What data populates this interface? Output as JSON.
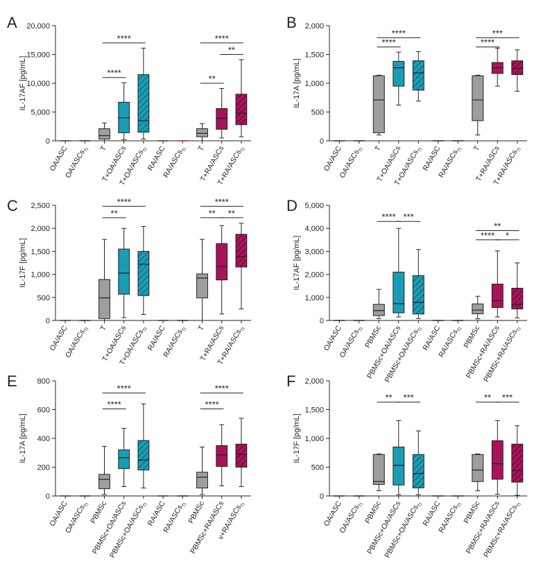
{
  "colors": {
    "gray": "#9e9e9e",
    "teal": "#1a9db4",
    "magenta": "#a8135a",
    "axis": "#222222"
  },
  "chart_data": [
    {
      "panel": "A",
      "type": "box",
      "ylabel": "IL-17AF [pg/mL]",
      "ylim": [
        0,
        20000
      ],
      "yticks": [
        0,
        5000,
        10000,
        15000,
        20000
      ],
      "ytick_labels": [
        "0",
        "5,000",
        "10,000",
        "15,000",
        "20,000"
      ],
      "categories": [
        "OA/ASC",
        "OA/ASCs_TI",
        "T",
        "T+OA/ASCs",
        "T+OA/ASCs_TI",
        "RA/ASC",
        "RA/ASCs_TI",
        "T",
        "T+RA/ASCs",
        "T+RA/ASCs_TI"
      ],
      "boxes": [
        {
          "style": "flat",
          "color": "gray",
          "min": 0,
          "q1": 0,
          "median": 0,
          "q3": 0,
          "max": 0
        },
        {
          "style": "flat",
          "color": "gray",
          "min": 0,
          "q1": 0,
          "median": 0,
          "q3": 0,
          "max": 0
        },
        {
          "style": "solid",
          "color": "gray",
          "min": 0,
          "q1": 300,
          "median": 900,
          "q3": 2100,
          "max": 3100
        },
        {
          "style": "solid",
          "color": "teal",
          "min": 200,
          "q1": 1400,
          "median": 4000,
          "q3": 6700,
          "max": 10100
        },
        {
          "style": "hatched",
          "color": "teal",
          "min": 300,
          "q1": 1500,
          "median": 3500,
          "q3": 11500,
          "max": 16100
        },
        {
          "style": "flat",
          "color": "gray",
          "min": 0,
          "q1": 0,
          "median": 0,
          "q3": 0,
          "max": 0
        },
        {
          "style": "flat",
          "color": "magenta",
          "min": 0,
          "q1": 0,
          "median": 0,
          "q3": 0,
          "max": 0
        },
        {
          "style": "solid",
          "color": "gray",
          "min": 0,
          "q1": 700,
          "median": 1300,
          "q3": 2100,
          "max": 3000
        },
        {
          "style": "solid",
          "color": "magenta",
          "min": 500,
          "q1": 2000,
          "median": 3900,
          "q3": 5600,
          "max": 9100
        },
        {
          "style": "hatched",
          "color": "magenta",
          "min": 700,
          "q1": 2800,
          "median": 4800,
          "q3": 8100,
          "max": 14100
        }
      ],
      "brackets": [
        {
          "from": 2,
          "to": 4,
          "y": 17000,
          "label": "****"
        },
        {
          "from": 2,
          "to": 3,
          "y": 11000,
          "label": "****"
        },
        {
          "from": 7,
          "to": 9,
          "y": 17000,
          "label": "****"
        },
        {
          "from": 7,
          "to": 8,
          "y": 10000,
          "label": "**"
        },
        {
          "from": 8,
          "to": 9,
          "y": 15000,
          "label": "**"
        }
      ]
    },
    {
      "panel": "B",
      "type": "box",
      "ylabel": "IL-17A [pg/mL]",
      "ylim": [
        0,
        2000
      ],
      "yticks": [
        0,
        500,
        1000,
        1500,
        2000
      ],
      "ytick_labels": [
        "0",
        "500",
        "1,000",
        "1,500",
        "2,000"
      ],
      "categories": [
        "OA/ASC",
        "OA/ASCs_TI",
        "T",
        "T+OA/ASCs",
        "T+OA/ASCs_TI",
        "RA/ASC",
        "RA/ASCs_TI",
        "T",
        "T+RA/ASCs",
        "T+RA/ASCs_TI"
      ],
      "boxes": [
        {
          "style": "flat",
          "color": "gray",
          "min": 0,
          "q1": 0,
          "median": 0,
          "q3": 0,
          "max": 0
        },
        {
          "style": "flat",
          "color": "gray",
          "min": 0,
          "q1": 0,
          "median": 0,
          "q3": 0,
          "max": 0
        },
        {
          "style": "solid",
          "color": "gray",
          "min": 100,
          "q1": 140,
          "median": 710,
          "q3": 1130,
          "max": 1140
        },
        {
          "style": "solid",
          "color": "teal",
          "min": 620,
          "q1": 950,
          "median": 1270,
          "q3": 1380,
          "max": 1540
        },
        {
          "style": "hatched",
          "color": "teal",
          "min": 690,
          "q1": 880,
          "median": 1180,
          "q3": 1390,
          "max": 1550
        },
        {
          "style": "flat",
          "color": "gray",
          "min": 0,
          "q1": 0,
          "median": 0,
          "q3": 0,
          "max": 0
        },
        {
          "style": "flat",
          "color": "gray",
          "min": 0,
          "q1": 0,
          "median": 0,
          "q3": 0,
          "max": 0
        },
        {
          "style": "solid",
          "color": "gray",
          "min": 100,
          "q1": 350,
          "median": 710,
          "q3": 1130,
          "max": 1140
        },
        {
          "style": "solid",
          "color": "magenta",
          "min": 950,
          "q1": 1170,
          "median": 1270,
          "q3": 1360,
          "max": 1610
        },
        {
          "style": "hatched",
          "color": "magenta",
          "min": 860,
          "q1": 1150,
          "median": 1260,
          "q3": 1390,
          "max": 1580
        }
      ],
      "brackets": [
        {
          "from": 2,
          "to": 4,
          "y": 1790,
          "label": "****"
        },
        {
          "from": 2,
          "to": 3,
          "y": 1630,
          "label": "****"
        },
        {
          "from": 7,
          "to": 9,
          "y": 1790,
          "label": "***"
        },
        {
          "from": 7,
          "to": 8,
          "y": 1630,
          "label": "****"
        }
      ]
    },
    {
      "panel": "C",
      "type": "box",
      "ylabel": "IL-17F [pg/mL]",
      "ylim": [
        0,
        2500
      ],
      "yticks": [
        0,
        500,
        1000,
        1500,
        2000,
        2500
      ],
      "ytick_labels": [
        "0",
        "500",
        "1,000",
        "1,500",
        "2,000",
        "2,500"
      ],
      "categories": [
        "OA/ASC",
        "OA/ASCs_TI",
        "T",
        "T+OA/ASCs",
        "T+OA/ASCs_TI",
        "RA/ASC",
        "RA/ASCs_TI",
        "T",
        "T+RA/ASCs",
        "T+RA/ASCs_TI"
      ],
      "boxes": [
        {
          "style": "flat",
          "color": "gray",
          "min": 0,
          "q1": 0,
          "median": 0,
          "q3": 0,
          "max": 0
        },
        {
          "style": "flat",
          "color": "gray",
          "min": 0,
          "q1": 0,
          "median": 0,
          "q3": 0,
          "max": 0
        },
        {
          "style": "solid",
          "color": "gray",
          "min": 0,
          "q1": 40,
          "median": 490,
          "q3": 890,
          "max": 1760
        },
        {
          "style": "solid",
          "color": "teal",
          "min": 60,
          "q1": 570,
          "median": 1030,
          "q3": 1550,
          "max": 2000
        },
        {
          "style": "hatched",
          "color": "teal",
          "min": 130,
          "q1": 540,
          "median": 1220,
          "q3": 1500,
          "max": 2040
        },
        {
          "style": "flat",
          "color": "gray",
          "min": 0,
          "q1": 0,
          "median": 0,
          "q3": 0,
          "max": 0
        },
        {
          "style": "flat",
          "color": "gray",
          "min": 0,
          "q1": 0,
          "median": 0,
          "q3": 0,
          "max": 0
        },
        {
          "style": "solid",
          "color": "gray",
          "min": 0,
          "q1": 490,
          "median": 920,
          "q3": 1010,
          "max": 1760
        },
        {
          "style": "solid",
          "color": "magenta",
          "min": 140,
          "q1": 880,
          "median": 1170,
          "q3": 1670,
          "max": 2060
        },
        {
          "style": "hatched",
          "color": "magenta",
          "min": 250,
          "q1": 1160,
          "median": 1390,
          "q3": 1870,
          "max": 2110
        }
      ],
      "brackets": [
        {
          "from": 2,
          "to": 4,
          "y": 2480,
          "label": "****"
        },
        {
          "from": 2,
          "to": 3,
          "y": 2230,
          "label": "**"
        },
        {
          "from": 7,
          "to": 9,
          "y": 2480,
          "label": "****"
        },
        {
          "from": 7,
          "to": 8,
          "y": 2230,
          "label": "**"
        },
        {
          "from": 8,
          "to": 9,
          "y": 2230,
          "label": "**"
        }
      ]
    },
    {
      "panel": "D",
      "type": "box",
      "ylabel": "IL-17AF [pg/mL]",
      "ylim": [
        0,
        5000
      ],
      "yticks": [
        0,
        1000,
        2000,
        3000,
        4000,
        5000
      ],
      "ytick_labels": [
        "0",
        "1,000",
        "2,000",
        "3,000",
        "4,000",
        "5,000"
      ],
      "categories": [
        "OA/ASC",
        "OA/ASCs_TI",
        "PBMSc",
        "PBMSc+OA/ASCs",
        "PBMSc+OA/ASCs_TI",
        "RA/ASC",
        "RA/ASCs_TI",
        "PBMSc",
        "PBMSc+RA/ASCs",
        "PBMSc+RA/ASCs_TI"
      ],
      "boxes": [
        {
          "style": "flat",
          "color": "gray",
          "min": 0,
          "q1": 0,
          "median": 0,
          "q3": 0,
          "max": 0
        },
        {
          "style": "flat",
          "color": "gray",
          "min": 0,
          "q1": 0,
          "median": 0,
          "q3": 0,
          "max": 0
        },
        {
          "style": "solid",
          "color": "gray",
          "min": 80,
          "q1": 210,
          "median": 430,
          "q3": 700,
          "max": 1350
        },
        {
          "style": "solid",
          "color": "teal",
          "min": 150,
          "q1": 330,
          "median": 730,
          "q3": 2100,
          "max": 4000
        },
        {
          "style": "hatched",
          "color": "teal",
          "min": 80,
          "q1": 280,
          "median": 790,
          "q3": 1950,
          "max": 3080
        },
        {
          "style": "flat",
          "color": "gray",
          "min": 0,
          "q1": 0,
          "median": 0,
          "q3": 0,
          "max": 0
        },
        {
          "style": "flat",
          "color": "gray",
          "min": 0,
          "q1": 0,
          "median": 0,
          "q3": 0,
          "max": 0
        },
        {
          "style": "solid",
          "color": "gray",
          "min": 70,
          "q1": 290,
          "median": 450,
          "q3": 720,
          "max": 1050
        },
        {
          "style": "solid",
          "color": "magenta",
          "min": 150,
          "q1": 560,
          "median": 860,
          "q3": 1580,
          "max": 3020
        },
        {
          "style": "hatched",
          "color": "magenta",
          "min": 110,
          "q1": 500,
          "median": 690,
          "q3": 1400,
          "max": 2500
        }
      ],
      "brackets": [
        {
          "from": 2,
          "to": 3,
          "y": 4300,
          "label": "****"
        },
        {
          "from": 3,
          "to": 4,
          "y": 4300,
          "label": "***"
        },
        {
          "from": 7,
          "to": 9,
          "y": 3900,
          "label": "**"
        },
        {
          "from": 7,
          "to": 8,
          "y": 3500,
          "label": "****"
        },
        {
          "from": 8,
          "to": 9,
          "y": 3500,
          "label": "*"
        }
      ]
    },
    {
      "panel": "E",
      "type": "box",
      "ylabel": "IL-17A [pg/mL]",
      "ylim": [
        0,
        800
      ],
      "yticks": [
        0,
        200,
        400,
        600,
        800
      ],
      "ytick_labels": [
        "0",
        "200",
        "400",
        "600",
        "800"
      ],
      "categories": [
        "OA/ASC",
        "OA/ASCs_TI",
        "PBMSc",
        "PBMSc+OA/ASCs",
        "PBMSc+OA/ASCs_TI",
        "RA/ASC",
        "RA/ASCs_TI",
        "PBMSc",
        "PBMSc+RA/ASCs",
        "v+RA/ASCs_TI"
      ],
      "boxes": [
        {
          "style": "flat",
          "color": "gray",
          "min": 0,
          "q1": 0,
          "median": 0,
          "q3": 0,
          "max": 0
        },
        {
          "style": "flat",
          "color": "gray",
          "min": 0,
          "q1": 0,
          "median": 0,
          "q3": 0,
          "max": 0
        },
        {
          "style": "solid",
          "color": "gray",
          "min": 10,
          "q1": 50,
          "median": 115,
          "q3": 150,
          "max": 345
        },
        {
          "style": "solid",
          "color": "teal",
          "min": 65,
          "q1": 190,
          "median": 265,
          "q3": 320,
          "max": 470
        },
        {
          "style": "hatched",
          "color": "teal",
          "min": 55,
          "q1": 180,
          "median": 250,
          "q3": 385,
          "max": 640
        },
        {
          "style": "flat",
          "color": "gray",
          "min": 0,
          "q1": 0,
          "median": 0,
          "q3": 0,
          "max": 0
        },
        {
          "style": "flat",
          "color": "gray",
          "min": 0,
          "q1": 0,
          "median": 0,
          "q3": 0,
          "max": 0
        },
        {
          "style": "solid",
          "color": "gray",
          "min": 10,
          "q1": 55,
          "median": 130,
          "q3": 165,
          "max": 340
        },
        {
          "style": "solid",
          "color": "magenta",
          "min": 70,
          "q1": 205,
          "median": 285,
          "q3": 350,
          "max": 495
        },
        {
          "style": "hatched",
          "color": "magenta",
          "min": 65,
          "q1": 200,
          "median": 290,
          "q3": 360,
          "max": 540
        }
      ],
      "brackets": [
        {
          "from": 2,
          "to": 4,
          "y": 715,
          "label": "****"
        },
        {
          "from": 2,
          "to": 3,
          "y": 605,
          "label": "****"
        },
        {
          "from": 7,
          "to": 9,
          "y": 715,
          "label": "****"
        },
        {
          "from": 7,
          "to": 8,
          "y": 605,
          "label": "****"
        }
      ]
    },
    {
      "panel": "F",
      "type": "box",
      "ylabel": "IL-17F [pg/mL]",
      "ylim": [
        0,
        2000
      ],
      "yticks": [
        0,
        500,
        1000,
        1500,
        2000
      ],
      "ytick_labels": [
        "0",
        "500",
        "1,000",
        "1,500",
        "2,000"
      ],
      "categories": [
        "OA/ASC",
        "OA/ASCs_TI",
        "PBMSc",
        "PBMSc+OA/ASCs",
        "PBMSc+OA/ASCs_TI",
        "RA/ASC",
        "RA/ASCs_TI",
        "PBMSc",
        "PBMSc+RA/ASCs",
        "PBMSc+RA/ASCs_TI"
      ],
      "boxes": [
        {
          "style": "flat",
          "color": "gray",
          "min": 0,
          "q1": 0,
          "median": 0,
          "q3": 0,
          "max": 0
        },
        {
          "style": "flat",
          "color": "gray",
          "min": 0,
          "q1": 0,
          "median": 0,
          "q3": 0,
          "max": 0
        },
        {
          "style": "solid",
          "color": "gray",
          "min": 90,
          "q1": 200,
          "median": 250,
          "q3": 720,
          "max": 730
        },
        {
          "style": "solid",
          "color": "teal",
          "min": 20,
          "q1": 190,
          "median": 530,
          "q3": 850,
          "max": 1310
        },
        {
          "style": "hatched",
          "color": "teal",
          "min": 20,
          "q1": 140,
          "median": 390,
          "q3": 720,
          "max": 1130
        },
        {
          "style": "flat",
          "color": "gray",
          "min": 0,
          "q1": 0,
          "median": 0,
          "q3": 0,
          "max": 0
        },
        {
          "style": "flat",
          "color": "gray",
          "min": 0,
          "q1": 0,
          "median": 0,
          "q3": 0,
          "max": 0
        },
        {
          "style": "solid",
          "color": "gray",
          "min": 90,
          "q1": 250,
          "median": 450,
          "q3": 720,
          "max": 730
        },
        {
          "style": "solid",
          "color": "magenta",
          "min": 30,
          "q1": 290,
          "median": 560,
          "q3": 960,
          "max": 1310
        },
        {
          "style": "hatched",
          "color": "magenta",
          "min": 10,
          "q1": 240,
          "median": 440,
          "q3": 900,
          "max": 1220
        }
      ],
      "brackets": [
        {
          "from": 2,
          "to": 3,
          "y": 1630,
          "label": "**"
        },
        {
          "from": 3,
          "to": 4,
          "y": 1630,
          "label": "***"
        },
        {
          "from": 7,
          "to": 8,
          "y": 1630,
          "label": "**"
        },
        {
          "from": 8,
          "to": 9,
          "y": 1630,
          "label": "***"
        }
      ]
    }
  ]
}
